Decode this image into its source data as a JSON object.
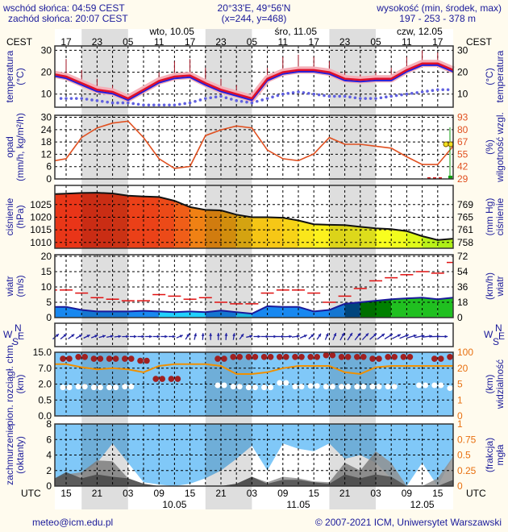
{
  "header": {
    "sunrise": "wschód słońca: 04:59 CEST",
    "sunset": "zachód słońca: 20:07 CEST",
    "coords": "20°33'E, 49°56'N",
    "grid": "(x=244,  y=468)",
    "elevation_label": "wysokość (min, środek, max)",
    "elevation": "197 - 253 - 378 m"
  },
  "time_axis": {
    "tz_top": "CEST",
    "tz_bottom": "UTC",
    "cest_ticks": [
      "17",
      "23",
      "05",
      "11",
      "17",
      "23",
      "05",
      "11",
      "17",
      "23",
      "05",
      "11",
      "17"
    ],
    "utc_ticks": [
      "15",
      "21",
      "03",
      "09",
      "15",
      "21",
      "03",
      "09",
      "15",
      "21",
      "03",
      "09",
      "15"
    ],
    "days_top": [
      "wto, 10.05",
      "śro, 11.05",
      "czw, 12.05"
    ],
    "days_bottom": [
      "10.05",
      "11.05",
      "12.05"
    ]
  },
  "labels": {
    "temp_left": [
      "temperatura",
      "(°C)"
    ],
    "temp_right": [
      "(°C)",
      "temperatura"
    ],
    "precip_left": [
      "opad",
      "(mm/h, kg/m²/h)"
    ],
    "precip_right": [
      "(%)",
      "wilgotność wzgl."
    ],
    "pressure_left": [
      "ciśnienie",
      "(hPa)"
    ],
    "pressure_right": [
      "(mm Hg)",
      "ciśnienie"
    ],
    "wind_left": [
      "wiatr",
      "(m/s)"
    ],
    "wind_right": [
      "(km/h)",
      "wiatr"
    ],
    "cloudbase_left": [
      "pion. rozciągł. chm.",
      "(km)"
    ],
    "cloudbase_right": [
      "(km)",
      "widzialność"
    ],
    "cloud_left": [
      "zachmurzenie",
      "(oktanty)"
    ],
    "cloud_right": [
      "(frakcja)",
      "mgła"
    ],
    "compass": {
      "n": "N",
      "w": "W",
      "e": "E",
      "s": "S"
    }
  },
  "footer": {
    "email": "meteo@icm.edu.pl",
    "copyright": "© 2007-2021 ICM, Uniwersytet Warszawski"
  },
  "colors": {
    "temp": "#e0102a",
    "dew": "#6060e0",
    "humidity": "#e05020",
    "gust": "#e01010",
    "wind_line": "#1a1a9a",
    "visibility": "#f09000",
    "cloud_bg": "#80c8f8",
    "night": "rgba(0,0,0,0.13)"
  },
  "chart_data": [
    {
      "type": "line",
      "title": "temperatura",
      "x_hours_utc": [
        12,
        15,
        18,
        21,
        24,
        27,
        30,
        33,
        36,
        39,
        42,
        45,
        48,
        51,
        54,
        57,
        60,
        63,
        66,
        69,
        72,
        75,
        78,
        81,
        84,
        87,
        90
      ],
      "ylim": [
        4,
        32
      ],
      "yticks": [
        "10",
        "20",
        "30"
      ],
      "yticks_right": [
        "10",
        "20",
        "30"
      ],
      "series": [
        {
          "name": "temperature",
          "values": [
            19,
            18,
            15,
            12,
            11,
            8,
            12,
            16,
            18,
            18.5,
            15,
            12,
            10,
            8,
            17,
            20,
            21,
            21,
            20,
            17,
            16.5,
            17,
            17,
            21,
            24,
            24,
            21
          ]
        },
        {
          "name": "temperature_max",
          "values": [
            26,
            26,
            21,
            17,
            14,
            10,
            14,
            20,
            25,
            26,
            22,
            17,
            14,
            11,
            22,
            27,
            28,
            27,
            25,
            20,
            19,
            20,
            22,
            27,
            30,
            29,
            26
          ]
        },
        {
          "name": "dew_point",
          "values": [
            8,
            8,
            8,
            7,
            6,
            6,
            5,
            5,
            5,
            6,
            8,
            9,
            7,
            6,
            8,
            10,
            11,
            10,
            9,
            9,
            8,
            8,
            9,
            10,
            11,
            12,
            12
          ]
        }
      ]
    },
    {
      "type": "line",
      "title": "opad / wilgotność wzgl.",
      "ylim": [
        0,
        31
      ],
      "yticks": [
        "0",
        "6",
        "12",
        "18",
        "24",
        "30"
      ],
      "yticks_right": [
        "29",
        "42",
        "55",
        "67",
        "80",
        "93"
      ],
      "series": [
        {
          "name": "relative_humidity_pct",
          "values": [
            48,
            50,
            72,
            82,
            87,
            89,
            72,
            50,
            40,
            42,
            74,
            80,
            84,
            82,
            59,
            50,
            48,
            55,
            72,
            65,
            65,
            63,
            61,
            52,
            44,
            44,
            63
          ]
        },
        {
          "name": "precipitation",
          "values": [
            0,
            0,
            0,
            0,
            0,
            0,
            0,
            0,
            0,
            0,
            0,
            0,
            0,
            0,
            0,
            0,
            0,
            0,
            0,
            0,
            0,
            0,
            0,
            0,
            0,
            0,
            0.8
          ]
        },
        {
          "name": "fog_points_pct",
          "values": [
            null,
            null,
            null,
            null,
            null,
            null,
            null,
            null,
            null,
            null,
            null,
            null,
            null,
            null,
            null,
            null,
            null,
            null,
            null,
            null,
            null,
            null,
            null,
            null,
            null,
            null,
            65
          ]
        }
      ]
    },
    {
      "type": "area",
      "title": "ciśnienie",
      "ylim": [
        1007.7,
        1032.6
      ],
      "yticks": [
        "1010",
        "1015",
        "1020",
        "1025"
      ],
      "yticks_right": [
        "758",
        "761",
        "765",
        "769"
      ],
      "series": [
        {
          "name": "pressure_hpa",
          "values": [
            1029.2,
            1029.3,
            1029.6,
            1029.7,
            1029.4,
            1028.5,
            1028.2,
            1028,
            1026.5,
            1024,
            1022.9,
            1022.7,
            1021,
            1020,
            1020,
            1019.8,
            1018.7,
            1017.2,
            1017,
            1016.9,
            1016.2,
            1015.6,
            1015.3,
            1014.5,
            1012.5,
            1011,
            1011.5
          ]
        }
      ]
    },
    {
      "type": "area",
      "title": "wiatr",
      "ylim": [
        0,
        20
      ],
      "yticks": [
        "0",
        "5",
        "10",
        "15",
        "20"
      ],
      "yticks_right": [
        "0",
        "18",
        "36",
        "54",
        "72"
      ],
      "series": [
        {
          "name": "wind_speed_ms",
          "values": [
            3.5,
            3.5,
            2.5,
            2,
            2,
            2,
            2.2,
            2,
            1.8,
            2,
            1.8,
            2.3,
            1.8,
            1.3,
            3.7,
            3.5,
            3.5,
            2,
            2.5,
            4.5,
            5,
            5.5,
            6,
            6.3,
            6.5,
            6,
            6.5
          ]
        },
        {
          "name": "wind_gust_ms",
          "values": [
            9,
            9,
            8,
            6.5,
            6,
            5.5,
            5.5,
            7.5,
            7,
            6,
            6.5,
            5,
            4.5,
            4.5,
            8,
            9,
            9,
            8,
            5,
            7,
            9.5,
            12,
            13,
            14,
            15,
            14.5,
            18
          ]
        },
        {
          "name": "wind_direction_deg",
          "values": [
            230,
            230,
            240,
            250,
            260,
            270,
            270,
            270,
            270,
            200,
            180,
            180,
            190,
            270,
            270,
            270,
            260,
            220,
            200,
            210,
            220,
            230,
            240,
            250,
            260,
            270,
            270
          ]
        }
      ]
    },
    {
      "type": "scatter",
      "title": "pion. rozciągł. chm. / widzialność",
      "yticks": [
        "0.0",
        "0.5",
        "2.0",
        "7.0",
        "15.0"
      ],
      "yticks_right": [
        "0",
        "1",
        "5",
        "20",
        "100"
      ],
      "series": [
        {
          "name": "visibility_km",
          "values": [
            30,
            30,
            22,
            18,
            20,
            18,
            14,
            25,
            30,
            30,
            30,
            25,
            12,
            12,
            14,
            20,
            25,
            25,
            25,
            14,
            12,
            22,
            25,
            25,
            25,
            25,
            25
          ]
        },
        {
          "name": "cloud_top_km",
          "values": [
            11,
            11,
            12,
            11,
            11,
            11,
            10,
            3,
            3,
            null,
            null,
            11,
            12,
            12,
            12,
            12,
            12,
            12,
            13,
            12,
            12,
            11,
            12,
            12,
            null,
            11,
            12
          ]
        },
        {
          "name": "cloud_base_km",
          "values": [
            1.8,
            1.5,
            1.6,
            1.5,
            1.5,
            1.6,
            null,
            null,
            null,
            null,
            null,
            1.8,
            1.6,
            1.5,
            1.5,
            2.2,
            1.6,
            1.7,
            1.6,
            1.6,
            1.6,
            1.6,
            1.6,
            null,
            1.8,
            1.8,
            1.4
          ]
        }
      ]
    },
    {
      "type": "area",
      "title": "zachmurzenie / mgła",
      "ylim": [
        0,
        8
      ],
      "yticks": [
        "0",
        "2",
        "4",
        "6",
        "8"
      ],
      "yticks_right": [
        "0",
        "0.25",
        "0.5",
        "0.75",
        "1"
      ],
      "series": [
        {
          "name": "total_cloud",
          "values": [
            1,
            1,
            1.5,
            3,
            5.5,
            3,
            0.5,
            0.2,
            0,
            0.3,
            1,
            2,
            3.5,
            5.2,
            2,
            5.5,
            4.8,
            4.5,
            5.5,
            3.5,
            4,
            3,
            1,
            0,
            3,
            0,
            3.8
          ]
        },
        {
          "name": "mid_cloud",
          "values": [
            1,
            1.5,
            1.8,
            3.3,
            3.2,
            1,
            0.3,
            0,
            0,
            0,
            0,
            0,
            0.3,
            1.2,
            0.5,
            1.2,
            1,
            0.6,
            0.5,
            3,
            2,
            4.5,
            3,
            0,
            0,
            1,
            3.8
          ]
        },
        {
          "name": "low_cloud",
          "values": [
            1,
            1.8,
            1,
            1.5,
            1.2,
            1,
            0.3,
            0,
            0,
            0,
            0,
            0,
            0.3,
            1.2,
            0.3,
            0.8,
            0.8,
            0.5,
            0.3,
            1.5,
            1,
            1.5,
            1.2,
            0,
            0,
            0,
            0.8
          ]
        }
      ]
    }
  ]
}
